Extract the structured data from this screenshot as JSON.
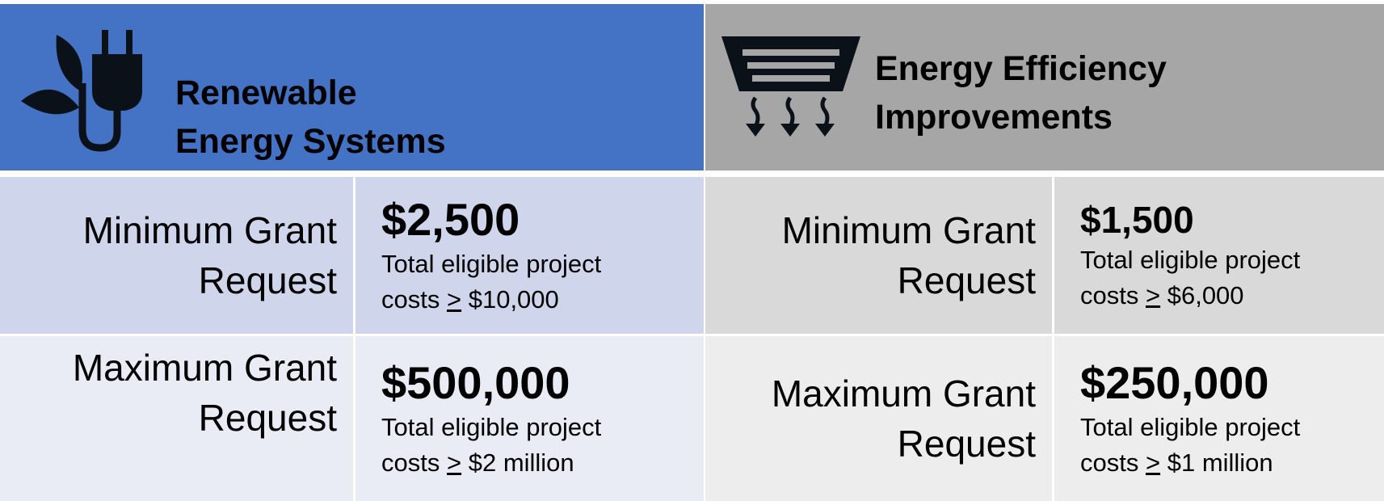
{
  "panels": [
    {
      "title": [
        "Renewable",
        "Energy Systems"
      ],
      "rows": [
        {
          "label": [
            "Minimum Grant",
            "Request"
          ],
          "amount": "$2,500",
          "note_text": "Total eligible project",
          "note_lead": "costs",
          "note_symbol": ">",
          "note_value": "$10,000"
        },
        {
          "label": [
            "Maximum Grant",
            "Request"
          ],
          "amount": "$500,000",
          "note_text": "Total eligible project",
          "note_lead": "costs",
          "note_symbol": ">",
          "note_value": "$2 million"
        }
      ]
    },
    {
      "title": [
        "Energy Efficiency",
        "Improvements"
      ],
      "rows": [
        {
          "label": [
            "Minimum Grant",
            "Request"
          ],
          "amount": "$1,500",
          "note_text": "Total eligible project",
          "note_lead": "costs",
          "note_symbol": ">",
          "note_value": "$6,000"
        },
        {
          "label": [
            "Maximum Grant",
            "Request"
          ],
          "amount": "$250,000",
          "note_text": "Total eligible project",
          "note_lead": "costs",
          "note_symbol": ">",
          "note_value": "$1 million"
        }
      ]
    }
  ]
}
